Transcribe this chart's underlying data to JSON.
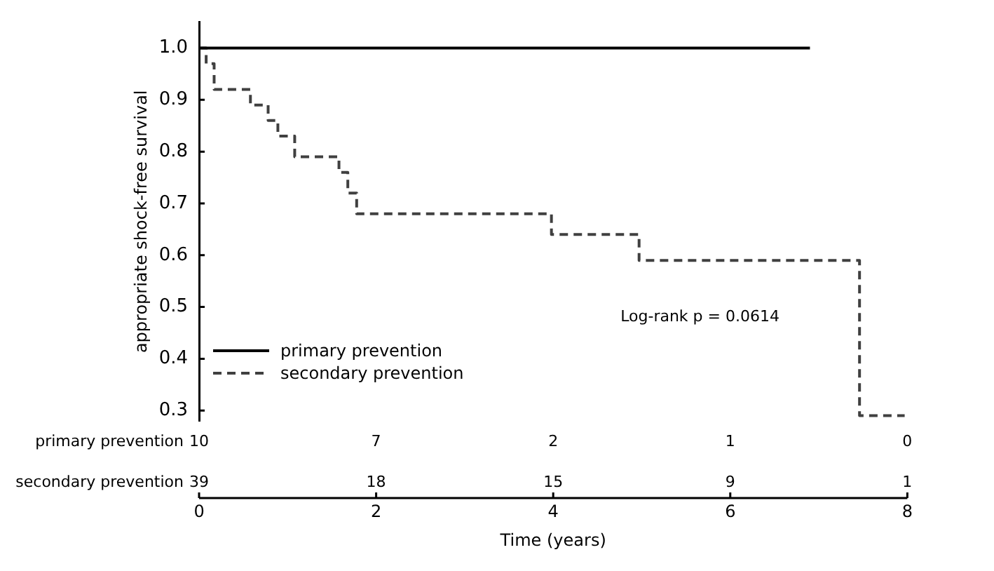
{
  "chart_data": {
    "type": "step",
    "xlabel": "Time (years)",
    "ylabel": "appropriate shock-free survival",
    "xlim": [
      0,
      8
    ],
    "xticks": [
      0,
      2,
      4,
      6,
      8
    ],
    "ylim": [
      0.28,
      1.05
    ],
    "yticks": [
      0.3,
      0.4,
      0.5,
      0.6,
      0.7,
      0.8,
      0.9,
      {
        "value": 1.0,
        "label": "1.0"
      }
    ],
    "series": [
      {
        "name": "primary prevention",
        "color": "#000000",
        "line_style": "solid",
        "x": [
          0,
          6.9
        ],
        "values": [
          1,
          1
        ]
      },
      {
        "name": "secondary prevention",
        "color": "#404040",
        "line_style": "dashed",
        "x": [
          0,
          0.08,
          0.17,
          0.58,
          0.78,
          0.89,
          1.08,
          1.58,
          1.68,
          1.78,
          3.98,
          4.97,
          7.46,
          7.97
        ],
        "values": [
          1,
          0.97,
          0.92,
          0.89,
          0.86,
          0.83,
          0.79,
          0.76,
          0.72,
          0.68,
          0.64,
          0.59,
          0.29,
          0.29
        ]
      }
    ],
    "annotations": [
      "Log-rank p = 0.0614",
      "primary prevention",
      "10",
      "7",
      "2",
      "1",
      "0",
      "secondary prevention",
      "39",
      "18",
      "15",
      "9",
      "1"
    ],
    "legend": "bottom left",
    "grid": false,
    "marker": "none"
  }
}
